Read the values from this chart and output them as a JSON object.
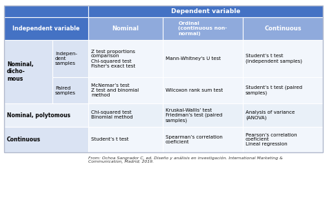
{
  "header_bg": "#4472C4",
  "subheader_bg": "#8faadc",
  "row0_bg": "#dae3f3",
  "row1_bg": "#eaf0f9",
  "cell0_bg": "#f2f6fc",
  "cell1_bg": "#e9f0f8",
  "border_color": "#ffffff",
  "col_headers": [
    "Nominal",
    "Ordinal\n(continuous non-\nnormal)",
    "Continuous"
  ],
  "footnote": "From: Ochoa Sangrador C, ed. Diseño y análisis en investigación. International Marketing &\nCommunication, Madrid; 2019.",
  "cells": [
    [
      "Z test proportions\ncomparison\nChi-squared test\nFisher's exact test",
      "Mann-Whitney's U test",
      "Student’s t test\n(independent samples)"
    ],
    [
      "McNemar’s test\nZ test and binomial\nmethod",
      "Wilcoxon rank sum test",
      "Student’s t test (paired\nsamples)"
    ],
    [
      "Chi-squared test\nBinomial method",
      "Kruskal-Wallis’ test\nFriedman’s test (paired\nsamples)",
      "Analysis of variance\n(ANOVA)"
    ],
    [
      "Student’s t test",
      "Spearman’s correlation\ncoeficient",
      "Pearson’s correlation\ncoeficient\nLineal regression"
    ]
  ]
}
